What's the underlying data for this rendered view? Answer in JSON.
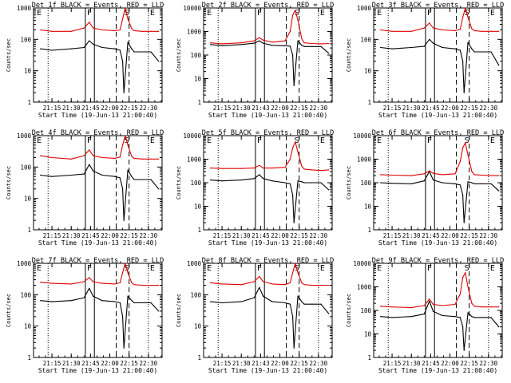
{
  "colors": {
    "events": "#000000",
    "lld": "#e00000",
    "axes": "#000000",
    "background": "#ffffff"
  },
  "chart_data": [
    {
      "type": "line",
      "title": "Det 1f BLACK = Events, RED = LLD",
      "xlabel": "Start Time (19-Jun-13 21:00:40)",
      "ylabel": "Counts/sec",
      "y_scale": "log",
      "ylim": [
        1,
        1000
      ],
      "y_ticks": [
        "1",
        "10",
        "100",
        "1000"
      ],
      "x_tick_labels": [
        "21:15",
        "21:30",
        "21:45",
        "22:00",
        "22:15",
        "22:30"
      ],
      "markers": [
        "E",
        "F",
        "S",
        "E"
      ],
      "series": [
        {
          "name": "Events",
          "color": "#000000",
          "x": [
            "21:06",
            "21:15",
            "21:30",
            "21:40",
            "21:44",
            "21:47",
            "21:54",
            "22:04",
            "22:08",
            "22:10",
            "22:11",
            "22:14",
            "22:17",
            "22:19",
            "22:25",
            "22:32",
            "22:38"
          ],
          "values": [
            50,
            45,
            50,
            55,
            90,
            70,
            55,
            50,
            45,
            20,
            2,
            80,
            50,
            40,
            40,
            40,
            20
          ]
        },
        {
          "name": "LLD",
          "color": "#e00000",
          "x": [
            "21:06",
            "21:15",
            "21:30",
            "21:40",
            "21:44",
            "21:47",
            "21:54",
            "22:04",
            "22:08",
            "22:10",
            "22:12",
            "22:14",
            "22:17",
            "22:19",
            "22:25",
            "22:32",
            "22:38"
          ],
          "values": [
            200,
            180,
            180,
            230,
            350,
            230,
            200,
            190,
            200,
            450,
            1000,
            450,
            220,
            190,
            180,
            180,
            180
          ]
        }
      ]
    },
    {
      "type": "line",
      "title": "Det 2f BLACK = Events, RED = LLD",
      "xlabel": "Start Time (19-Jun-13 21:00:40)",
      "ylabel": "Counts/sec",
      "y_scale": "log",
      "ylim": [
        1,
        10000
      ],
      "y_ticks": [
        "1",
        "10",
        "100",
        "1000",
        "10000"
      ],
      "x_tick_labels": [
        "21:15",
        "21:30",
        "21:43",
        "22:00",
        "22:15",
        "22:30"
      ],
      "markers": [
        "E",
        "F",
        "S",
        "E"
      ],
      "series": [
        {
          "name": "Events",
          "color": "#000000",
          "x": [
            "21:06",
            "21:15",
            "21:30",
            "21:40",
            "21:44",
            "21:47",
            "21:54",
            "22:04",
            "22:08",
            "22:10",
            "22:11",
            "22:14",
            "22:17",
            "22:19",
            "22:25",
            "22:32",
            "22:38"
          ],
          "values": [
            280,
            250,
            280,
            320,
            400,
            320,
            260,
            250,
            240,
            100,
            5,
            400,
            260,
            230,
            230,
            230,
            120
          ]
        },
        {
          "name": "LLD",
          "color": "#e00000",
          "x": [
            "21:06",
            "21:15",
            "21:30",
            "21:40",
            "21:44",
            "21:47",
            "21:54",
            "22:04",
            "22:08",
            "22:10",
            "22:12",
            "22:14",
            "22:17",
            "22:19",
            "22:25",
            "22:32",
            "22:38"
          ],
          "values": [
            330,
            300,
            330,
            400,
            550,
            430,
            350,
            400,
            1000,
            5000,
            8000,
            3000,
            500,
            330,
            310,
            300,
            310
          ]
        }
      ]
    },
    {
      "type": "line",
      "title": "Det 3f BLACK = Events, RED = LLD",
      "xlabel": "Start Time (19-Jun-13 21:00:40)",
      "ylabel": "Counts/sec",
      "y_scale": "log",
      "ylim": [
        1,
        1000
      ],
      "y_ticks": [
        "1",
        "10",
        "100",
        "1000"
      ],
      "x_tick_labels": [
        "21:15",
        "21:30",
        "21:45",
        "22:00",
        "22:15",
        "22:30"
      ],
      "markers": [
        "E",
        "F",
        "S",
        "E"
      ],
      "series": [
        {
          "name": "Events",
          "color": "#000000",
          "x": [
            "21:06",
            "21:15",
            "21:30",
            "21:40",
            "21:44",
            "21:47",
            "21:54",
            "22:04",
            "22:08",
            "22:10",
            "22:11",
            "22:14",
            "22:17",
            "22:19",
            "22:25",
            "22:32",
            "22:38"
          ],
          "values": [
            55,
            50,
            55,
            60,
            100,
            75,
            55,
            50,
            45,
            20,
            2,
            80,
            50,
            40,
            40,
            40,
            15
          ]
        },
        {
          "name": "LLD",
          "color": "#e00000",
          "x": [
            "21:06",
            "21:15",
            "21:30",
            "21:40",
            "21:44",
            "21:47",
            "21:54",
            "22:04",
            "22:08",
            "22:10",
            "22:12",
            "22:14",
            "22:17",
            "22:19",
            "22:25",
            "22:32",
            "22:38"
          ],
          "values": [
            200,
            180,
            180,
            230,
            330,
            230,
            200,
            190,
            210,
            500,
            1000,
            500,
            220,
            190,
            180,
            180,
            180
          ]
        }
      ]
    },
    {
      "type": "line",
      "title": "Det 4f BLACK = Events, RED = LLD",
      "xlabel": "Start Time (19-Jun-13 21:00:40)",
      "ylabel": "Counts/sec",
      "y_scale": "log",
      "ylim": [
        1,
        1000
      ],
      "y_ticks": [
        "1",
        "10",
        "100",
        "1000"
      ],
      "x_tick_labels": [
        "21:15",
        "21:30",
        "21:45",
        "22:00",
        "22:15",
        "22:30"
      ],
      "markers": [
        "E",
        "F",
        "S",
        "E"
      ],
      "series": [
        {
          "name": "Events",
          "color": "#000000",
          "x": [
            "21:06",
            "21:15",
            "21:30",
            "21:40",
            "21:44",
            "21:47",
            "21:54",
            "22:04",
            "22:08",
            "22:10",
            "22:11",
            "22:14",
            "22:17",
            "22:19",
            "22:25",
            "22:32",
            "22:38"
          ],
          "values": [
            55,
            50,
            55,
            60,
            120,
            75,
            55,
            50,
            45,
            20,
            2,
            80,
            50,
            40,
            40,
            40,
            20
          ]
        },
        {
          "name": "LLD",
          "color": "#e00000",
          "x": [
            "21:06",
            "21:15",
            "21:30",
            "21:40",
            "21:44",
            "21:47",
            "21:54",
            "22:04",
            "22:08",
            "22:10",
            "22:12",
            "22:14",
            "22:17",
            "22:19",
            "22:25",
            "22:32",
            "22:38"
          ],
          "values": [
            230,
            200,
            180,
            230,
            350,
            230,
            200,
            190,
            210,
            500,
            1000,
            500,
            220,
            190,
            180,
            180,
            180
          ]
        }
      ]
    },
    {
      "type": "line",
      "title": "Det 5f BLACK = Events, RED = LLD",
      "xlabel": "Start Time (19-Jun-13 21:00:40)",
      "ylabel": "Counts/sec",
      "y_scale": "log",
      "ylim": [
        1,
        10000
      ],
      "y_ticks": [
        "1",
        "10",
        "100",
        "1000",
        "10000"
      ],
      "x_tick_labels": [
        "21:15",
        "21:30",
        "21:45",
        "22:00",
        "22:15",
        "22:30"
      ],
      "markers": [
        "E",
        "F",
        "S",
        "E"
      ],
      "series": [
        {
          "name": "Events",
          "color": "#000000",
          "x": [
            "21:06",
            "21:15",
            "21:30",
            "21:40",
            "21:44",
            "21:47",
            "21:54",
            "22:04",
            "22:08",
            "22:10",
            "22:11",
            "22:14",
            "22:17",
            "22:19",
            "22:25",
            "22:32",
            "22:38"
          ],
          "values": [
            130,
            120,
            130,
            150,
            220,
            150,
            120,
            100,
            90,
            30,
            2,
            120,
            110,
            100,
            100,
            100,
            50
          ]
        },
        {
          "name": "LLD",
          "color": "#e00000",
          "x": [
            "21:06",
            "21:15",
            "21:30",
            "21:40",
            "21:44",
            "21:47",
            "21:54",
            "22:04",
            "22:08",
            "22:10",
            "22:12",
            "22:14",
            "22:17",
            "22:19",
            "22:25",
            "22:32",
            "22:38"
          ],
          "values": [
            420,
            400,
            400,
            420,
            550,
            420,
            420,
            450,
            1000,
            3000,
            5500,
            2000,
            500,
            380,
            350,
            330,
            350
          ]
        }
      ]
    },
    {
      "type": "line",
      "title": "Det 6f BLACK = Events, RED = LLD",
      "xlabel": "Start Time (19-Jun-13 21:00:40)",
      "ylabel": "Counts/sec",
      "y_scale": "log",
      "ylim": [
        1,
        10000
      ],
      "y_ticks": [
        "1",
        "10",
        "100",
        "1000",
        "10000"
      ],
      "x_tick_labels": [
        "21:15",
        "21:30",
        "21:45",
        "22:00",
        "22:15",
        "22:30"
      ],
      "markers": [
        "E",
        "F",
        "S",
        "E"
      ],
      "series": [
        {
          "name": "Events",
          "color": "#000000",
          "x": [
            "21:06",
            "21:15",
            "21:30",
            "21:40",
            "21:44",
            "21:47",
            "21:54",
            "22:04",
            "22:08",
            "22:10",
            "22:11",
            "22:14",
            "22:17",
            "22:19",
            "22:25",
            "22:32",
            "22:38"
          ],
          "values": [
            100,
            95,
            90,
            120,
            300,
            130,
            100,
            90,
            80,
            30,
            2,
            110,
            100,
            90,
            90,
            90,
            45
          ]
        },
        {
          "name": "LLD",
          "color": "#e00000",
          "x": [
            "21:06",
            "21:15",
            "21:30",
            "21:40",
            "21:44",
            "21:47",
            "21:54",
            "22:04",
            "22:08",
            "22:10",
            "22:12",
            "22:14",
            "22:17",
            "22:19",
            "22:25",
            "22:32",
            "22:38"
          ],
          "values": [
            220,
            210,
            200,
            240,
            320,
            250,
            220,
            240,
            800,
            3000,
            5000,
            1500,
            300,
            220,
            210,
            200,
            200
          ]
        }
      ]
    },
    {
      "type": "line",
      "title": "Det 7f BLACK = Events, RED = LLD",
      "xlabel": "Start Time (19-Jun-13 21:00:40)",
      "ylabel": "Counts/sec",
      "y_scale": "log",
      "ylim": [
        1,
        1000
      ],
      "y_ticks": [
        "1",
        "10",
        "100",
        "1000"
      ],
      "x_tick_labels": [
        "21:15",
        "21:30",
        "21:45",
        "22:00",
        "22:15",
        "22:30"
      ],
      "markers": [
        "E",
        "F",
        "S",
        "E"
      ],
      "series": [
        {
          "name": "Events",
          "color": "#000000",
          "x": [
            "21:06",
            "21:15",
            "21:30",
            "21:40",
            "21:44",
            "21:47",
            "21:54",
            "22:04",
            "22:08",
            "22:10",
            "22:11",
            "22:14",
            "22:17",
            "22:19",
            "22:25",
            "22:32",
            "22:38"
          ],
          "values": [
            65,
            60,
            65,
            80,
            160,
            90,
            65,
            60,
            55,
            20,
            2,
            90,
            65,
            55,
            55,
            55,
            30
          ]
        },
        {
          "name": "LLD",
          "color": "#e00000",
          "x": [
            "21:06",
            "21:15",
            "21:30",
            "21:40",
            "21:44",
            "21:47",
            "21:54",
            "22:04",
            "22:08",
            "22:10",
            "22:12",
            "22:14",
            "22:17",
            "22:19",
            "22:25",
            "22:32",
            "22:38"
          ],
          "values": [
            250,
            230,
            220,
            260,
            350,
            260,
            230,
            220,
            240,
            500,
            1000,
            500,
            240,
            210,
            200,
            200,
            200
          ]
        }
      ]
    },
    {
      "type": "line",
      "title": "Det 8f BLACK = Events, RED = LLD",
      "xlabel": "Start Time (19-Jun-13 21:00:40)",
      "ylabel": "Counts/sec",
      "y_scale": "log",
      "ylim": [
        1,
        1000
      ],
      "y_ticks": [
        "1",
        "10",
        "100",
        "1000"
      ],
      "x_tick_labels": [
        "21:15",
        "21:30",
        "21:43",
        "22:00",
        "22:15",
        "22:30"
      ],
      "markers": [
        "E",
        "F",
        "S",
        "E"
      ],
      "series": [
        {
          "name": "Events",
          "color": "#000000",
          "x": [
            "21:06",
            "21:15",
            "21:30",
            "21:40",
            "21:44",
            "21:47",
            "21:54",
            "22:04",
            "22:08",
            "22:10",
            "22:11",
            "22:14",
            "22:17",
            "22:19",
            "22:25",
            "22:32",
            "22:38"
          ],
          "values": [
            60,
            55,
            60,
            80,
            170,
            90,
            60,
            55,
            50,
            20,
            2,
            90,
            60,
            50,
            50,
            50,
            25
          ]
        },
        {
          "name": "LLD",
          "color": "#e00000",
          "x": [
            "21:06",
            "21:15",
            "21:30",
            "21:40",
            "21:44",
            "21:47",
            "21:54",
            "22:04",
            "22:08",
            "22:10",
            "22:12",
            "22:14",
            "22:17",
            "22:19",
            "22:25",
            "22:32",
            "22:38"
          ],
          "values": [
            240,
            220,
            210,
            260,
            380,
            260,
            220,
            210,
            240,
            500,
            1000,
            500,
            240,
            210,
            200,
            200,
            200
          ]
        }
      ]
    },
    {
      "type": "line",
      "title": "Det 9f BLACK = Events, RED = LLD",
      "xlabel": "Start Time (19-Jun-13 21:00:40)",
      "ylabel": "Counts/sec",
      "y_scale": "log",
      "ylim": [
        1,
        10000
      ],
      "y_ticks": [
        "1",
        "10",
        "100",
        "1000",
        "10000"
      ],
      "x_tick_labels": [
        "21:15",
        "21:30",
        "21:45",
        "22:00",
        "22:15",
        "22:30"
      ],
      "markers": [
        "E",
        "F",
        "S",
        "E"
      ],
      "series": [
        {
          "name": "Events",
          "color": "#000000",
          "x": [
            "21:06",
            "21:15",
            "21:30",
            "21:40",
            "21:44",
            "21:47",
            "21:54",
            "22:04",
            "22:08",
            "22:10",
            "22:11",
            "22:14",
            "22:17",
            "22:19",
            "22:25",
            "22:32",
            "22:38"
          ],
          "values": [
            55,
            50,
            55,
            70,
            250,
            90,
            60,
            55,
            50,
            20,
            2,
            80,
            55,
            50,
            50,
            50,
            20
          ]
        },
        {
          "name": "LLD",
          "color": "#e00000",
          "x": [
            "21:06",
            "21:15",
            "21:30",
            "21:40",
            "21:44",
            "21:47",
            "21:54",
            "22:04",
            "22:08",
            "22:10",
            "22:12",
            "22:14",
            "22:17",
            "22:19",
            "22:25",
            "22:32",
            "22:38"
          ],
          "values": [
            150,
            140,
            130,
            160,
            300,
            180,
            160,
            180,
            500,
            2500,
            4000,
            1000,
            200,
            150,
            140,
            140,
            140
          ]
        }
      ]
    }
  ]
}
